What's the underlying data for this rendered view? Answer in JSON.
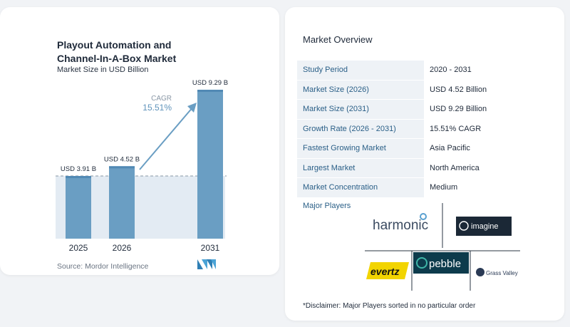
{
  "chart_data": {
    "type": "bar",
    "title": "Playout Automation and Channel-In-A-Box Market",
    "subtitle": "Market Size in USD Billion",
    "categories": [
      "2025",
      "2026",
      "2031"
    ],
    "values": [
      3.91,
      4.52,
      9.29
    ],
    "data_labels": [
      "USD 3.91 B",
      "USD 4.52 B",
      "USD 9.29 B"
    ],
    "ylim": [
      0,
      10
    ],
    "grid": false,
    "reference_line": 3.91,
    "cagr": {
      "label": "CAGR",
      "value": "15.51%"
    },
    "colors": {
      "bar": "#6a9ec3",
      "bar_top": "#5189b4",
      "shade": "#e3ebf3",
      "arrow": "#6a9ec3"
    }
  },
  "title_lines": [
    "Playout Automation and",
    "Channel-In-A-Box Market"
  ],
  "source": "Source: Mordor Intelligence",
  "overview": {
    "title": "Market Overview",
    "rows": [
      {
        "label": "Study Period",
        "value": "2020 - 2031"
      },
      {
        "label": "Market Size (2026)",
        "value": "USD 4.52 Billion"
      },
      {
        "label": "Market Size (2031)",
        "value": "USD 9.29 Billion"
      },
      {
        "label": "Growth Rate (2026 - 2031)",
        "value": "15.51% CAGR"
      },
      {
        "label": "Fastest Growing Market",
        "value": "Asia Pacific"
      },
      {
        "label": "Largest Market",
        "value": "North America"
      },
      {
        "label": "Market Concentration",
        "value": "Medium"
      }
    ]
  },
  "players": {
    "label": "Major Players",
    "logos": [
      "harmonic",
      "imagine",
      "evertz",
      "pebble",
      "Grass Valley"
    ]
  },
  "disclaimer": "*Disclaimer: Major Players sorted in no particular order"
}
